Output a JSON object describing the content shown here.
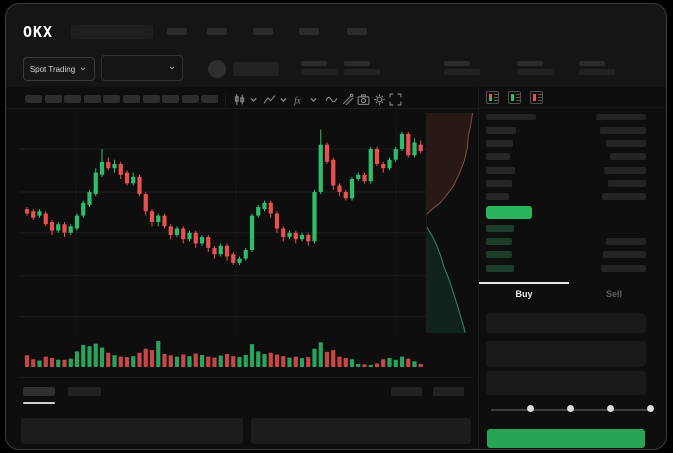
{
  "app": {
    "brand": "OKX"
  },
  "colors": {
    "background": "#0e0e0e",
    "header_background": "#151515",
    "skeleton": "#2b2b2b",
    "skeleton_dim": "#222222",
    "candle_green": "#2ebd6b",
    "candle_red": "#e9514e",
    "accent_green": "#2bb45e",
    "buy_button_green": "#27a455",
    "text_primary": "#e8e8e8",
    "text_dim": "#5f5f5f",
    "grid": "#1d1d1d",
    "depth_ask_line": "#9e5b55",
    "depth_ask_fill": "#3a201d",
    "depth_bid_line": "#4f9c88",
    "depth_bid_fill": "#12342a"
  },
  "header": {
    "market_selector_label": "Spot Trading",
    "nav_placeholder_count": 5,
    "stat_placeholder_count": 5
  },
  "toolbar": {
    "interval_placeholder_count": 10,
    "icons": [
      "candles-icon",
      "chevron-down-icon",
      "chart-style-icon",
      "chevron-down-icon",
      "indicators-icon",
      "chevron-down-icon",
      "wave-icon",
      "drawing-tools-icon",
      "camera-icon",
      "settings-icon",
      "fullscreen-icon"
    ]
  },
  "chart_data": {
    "type": "candlestick",
    "title": "",
    "xlabel": "",
    "ylabel": "",
    "grid": "horizontal+sparse-vertical",
    "price_range": [
      0,
      100
    ],
    "gridline_prices": [
      87,
      67,
      48,
      28,
      9
    ],
    "candles": [
      [
        59,
        60,
        56,
        57
      ],
      [
        58,
        59,
        54,
        55
      ],
      [
        56,
        59,
        55,
        58
      ],
      [
        57,
        58,
        51,
        52
      ],
      [
        53,
        54,
        47,
        49
      ],
      [
        49,
        53,
        48,
        52
      ],
      [
        52,
        53,
        46,
        48
      ],
      [
        48,
        52,
        47,
        51
      ],
      [
        50,
        57,
        49,
        56
      ],
      [
        56,
        63,
        55,
        62
      ],
      [
        61,
        68,
        60,
        67
      ],
      [
        66,
        78,
        65,
        76
      ],
      [
        75,
        87,
        74,
        81
      ],
      [
        81,
        83,
        77,
        78
      ],
      [
        78,
        82,
        76,
        80
      ],
      [
        80,
        81,
        73,
        75
      ],
      [
        76,
        77,
        70,
        71
      ],
      [
        71,
        76,
        70,
        74
      ],
      [
        74,
        75,
        65,
        66
      ],
      [
        66,
        67,
        56,
        58
      ],
      [
        58,
        59,
        51,
        53
      ],
      [
        53,
        57,
        51,
        56
      ],
      [
        56,
        57,
        50,
        51
      ],
      [
        51,
        52,
        45,
        47
      ],
      [
        47,
        51,
        46,
        50
      ],
      [
        50,
        51,
        43,
        45
      ],
      [
        45,
        49,
        44,
        48
      ],
      [
        48,
        49,
        41,
        43
      ],
      [
        43,
        47,
        42,
        46
      ],
      [
        46,
        47,
        39,
        41
      ],
      [
        41,
        42,
        36,
        38
      ],
      [
        38,
        43,
        37,
        42
      ],
      [
        42,
        43,
        35,
        37
      ],
      [
        38,
        39,
        33,
        34
      ],
      [
        34,
        37,
        33,
        36
      ],
      [
        36,
        41,
        35,
        40
      ],
      [
        40,
        57,
        39,
        56
      ],
      [
        56,
        61,
        55,
        60
      ],
      [
        59,
        63,
        58,
        62
      ],
      [
        62,
        63,
        55,
        57
      ],
      [
        57,
        58,
        48,
        50
      ],
      [
        50,
        51,
        44,
        46
      ],
      [
        46,
        49,
        45,
        48
      ],
      [
        48,
        49,
        43,
        45
      ],
      [
        45,
        48,
        44,
        47
      ],
      [
        47,
        48,
        42,
        44
      ],
      [
        44,
        68,
        43,
        67
      ],
      [
        67,
        96,
        66,
        89
      ],
      [
        89,
        90,
        80,
        81
      ],
      [
        82,
        83,
        68,
        70
      ],
      [
        70,
        71,
        65,
        67
      ],
      [
        67,
        68,
        63,
        64
      ],
      [
        64,
        74,
        63,
        73
      ],
      [
        73,
        76,
        72,
        75
      ],
      [
        75,
        76,
        71,
        72
      ],
      [
        72,
        88,
        71,
        87
      ],
      [
        87,
        88,
        79,
        80
      ],
      [
        80,
        81,
        76,
        78
      ],
      [
        78,
        83,
        77,
        82
      ],
      [
        82,
        88,
        81,
        87
      ],
      [
        87,
        95,
        86,
        94
      ],
      [
        94,
        95,
        83,
        84
      ],
      [
        84,
        92,
        83,
        90
      ],
      [
        89,
        91,
        85,
        86
      ]
    ],
    "volume": [
      45,
      30,
      25,
      40,
      35,
      28,
      28,
      32,
      60,
      85,
      80,
      90,
      75,
      55,
      45,
      40,
      38,
      42,
      55,
      70,
      65,
      100,
      50,
      45,
      40,
      48,
      42,
      52,
      46,
      40,
      36,
      44,
      50,
      42,
      38,
      46,
      88,
      60,
      50,
      55,
      48,
      42,
      36,
      40,
      34,
      38,
      70,
      95,
      58,
      65,
      40,
      35,
      30,
      12,
      10,
      8,
      14,
      30,
      35,
      28,
      40,
      32,
      22,
      12
    ],
    "depth_overlay": {
      "type": "depth-vertical",
      "asks": [
        [
          0.88,
          0
        ],
        [
          0.84,
          0.06
        ],
        [
          0.8,
          0.1
        ],
        [
          0.78,
          0.16
        ],
        [
          0.72,
          0.22
        ],
        [
          0.62,
          0.28
        ],
        [
          0.52,
          0.33
        ],
        [
          0.4,
          0.37
        ],
        [
          0.26,
          0.41
        ],
        [
          0.1,
          0.44
        ],
        [
          0.02,
          0.46
        ]
      ],
      "bids": [
        [
          0.02,
          0.52
        ],
        [
          0.12,
          0.56
        ],
        [
          0.2,
          0.6
        ],
        [
          0.28,
          0.65
        ],
        [
          0.34,
          0.7
        ],
        [
          0.44,
          0.76
        ],
        [
          0.52,
          0.82
        ],
        [
          0.6,
          0.88
        ],
        [
          0.66,
          0.93
        ],
        [
          0.72,
          0.98
        ],
        [
          0.74,
          1.0
        ]
      ]
    }
  },
  "order_book": {
    "view_modes": [
      "combined",
      "bids-only",
      "asks-only"
    ],
    "ask_row_count": 6,
    "bid_row_count": 4,
    "last_price_highlighted": true
  },
  "trade_panel": {
    "tabs": [
      {
        "label": "Buy",
        "active": true
      },
      {
        "label": "Sell",
        "active": false
      }
    ],
    "input_placeholder_count": 3,
    "slider": {
      "stops": 5,
      "active_stop": 0
    },
    "submit_label": ""
  },
  "bottom_panel": {
    "left_tab_count": 2,
    "right_link_count": 2,
    "content_panel_count": 2,
    "active_tab_index": 0
  }
}
